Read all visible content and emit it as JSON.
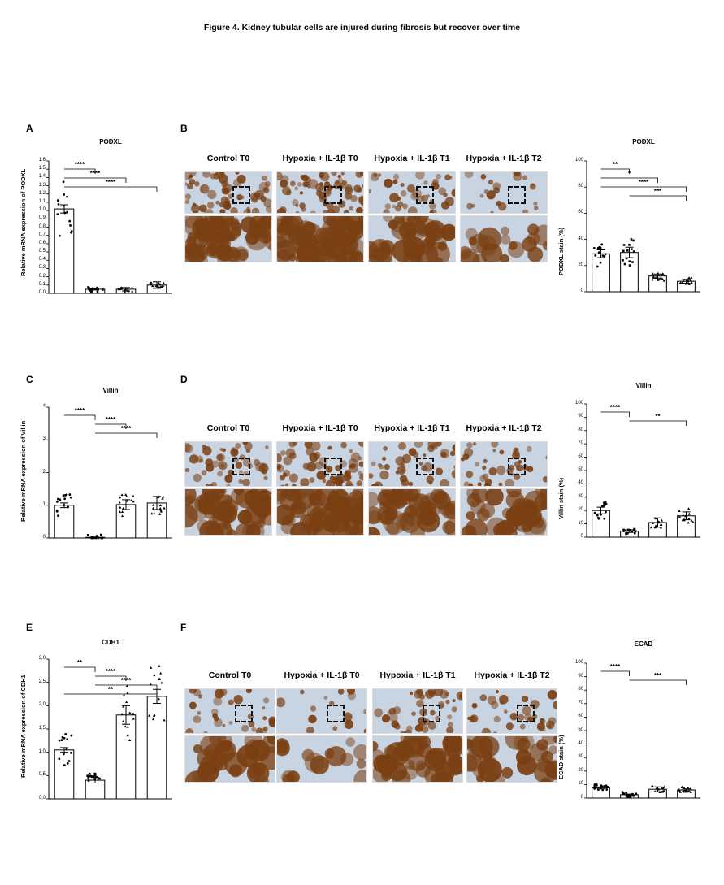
{
  "figure_title": "Figure 4. Kidney tubular cells  are injured during fibrosis but recover over time",
  "panels": {
    "A": {
      "letter": "A",
      "title": "PODXL",
      "ylabel": "Relative mRNA expression of PODXL"
    },
    "B": {
      "letter": "B",
      "title": "PODXL",
      "ylabel": "PODXL stain (%)"
    },
    "C": {
      "letter": "C",
      "title": "Villin",
      "ylabel": "Relative mRNA expression of Villin"
    },
    "D": {
      "letter": "D",
      "title": "Villin",
      "ylabel": "Villin stain (%)"
    },
    "E": {
      "letter": "E",
      "title": "CDH1",
      "ylabel": "Relative mRNA expression of CDH1"
    },
    "F": {
      "letter": "F",
      "title": "ECAD",
      "ylabel": "ECAD stain (%)"
    }
  },
  "micro_labels": [
    "Control T0",
    "Hypoxia + IL-1β T0",
    "Hypoxia + IL-1β T1",
    "Hypoxia + IL-1β T2"
  ],
  "colors": {
    "stain_brown": "#7a3f12",
    "tissue_blue": "#c9d4e3",
    "bar_edge": "#000000"
  },
  "chart_data": [
    {
      "id": "A",
      "type": "bar",
      "title": "PODXL",
      "xlabel": "",
      "ylabel": "Relative mRNA expression of PODXL",
      "categories": [
        "Control T0",
        "Hypoxia+IL-1β T0",
        "Hypoxia+IL-1β T1",
        "Hypoxia+IL-1β T2"
      ],
      "values": [
        1.02,
        0.05,
        0.05,
        0.1
      ],
      "errors": [
        0.05,
        0.01,
        0.02,
        0.04
      ],
      "ylim": [
        0,
        1.6
      ],
      "yticks": [
        "0.0",
        "0.1",
        "0.2",
        "0.3",
        "0.4",
        "0.5",
        "0.6",
        "0.7",
        "0.8",
        "0.9",
        "1.0",
        "1.1",
        "1.2",
        "1.3",
        "1.4",
        "1.5",
        "1.6"
      ],
      "significance": [
        {
          "from": 0,
          "to": 1,
          "label": "****"
        },
        {
          "from": 0,
          "to": 2,
          "label": "****"
        },
        {
          "from": 0,
          "to": 3,
          "label": "****"
        }
      ]
    },
    {
      "id": "B",
      "type": "bar",
      "title": "PODXL",
      "xlabel": "",
      "ylabel": "PODXL stain (%)",
      "categories": [
        "Control T0",
        "Hypoxia+IL-1β T0",
        "Hypoxia+IL-1β T1",
        "Hypoxia+IL-1β T2"
      ],
      "values": [
        29,
        30,
        12,
        8
      ],
      "errors": [
        3,
        4,
        1.5,
        1.5
      ],
      "ylim": [
        0,
        100
      ],
      "yticks": [
        "0",
        "20",
        "40",
        "60",
        "80",
        "100"
      ],
      "significance": [
        {
          "from": 0,
          "to": 1,
          "label": "**"
        },
        {
          "from": 0,
          "to": 2,
          "label": "*"
        },
        {
          "from": 0,
          "to": 3,
          "label": "****"
        },
        {
          "from": 1,
          "to": 3,
          "label": "***"
        }
      ]
    },
    {
      "id": "C",
      "type": "bar",
      "title": "Villin",
      "xlabel": "",
      "ylabel": "Relative mRNA expression of Villin",
      "categories": [
        "Control T0",
        "Hypoxia+IL-1β T0",
        "Hypoxia+IL-1β T1",
        "Hypoxia+IL-1β T2"
      ],
      "values": [
        1.0,
        0.02,
        1.02,
        1.07
      ],
      "errors": [
        0.07,
        0.01,
        0.15,
        0.2
      ],
      "ylim": [
        0,
        4
      ],
      "yticks": [
        "0",
        "1",
        "2",
        "3",
        "4"
      ],
      "significance": [
        {
          "from": 0,
          "to": 1,
          "label": "****"
        },
        {
          "from": 1,
          "to": 2,
          "label": "****"
        },
        {
          "from": 1,
          "to": 3,
          "label": "****"
        }
      ]
    },
    {
      "id": "D",
      "type": "bar",
      "title": "Villin",
      "xlabel": "",
      "ylabel": "Villin stain (%)",
      "categories": [
        "Control T0",
        "Hypoxia+IL-1β T0",
        "Hypoxia+IL-1β T1",
        "Hypoxia+IL-1β T2"
      ],
      "values": [
        20,
        4.5,
        11,
        16
      ],
      "errors": [
        2.5,
        1,
        3.5,
        3
      ],
      "ylim": [
        0,
        100
      ],
      "yticks": [
        "0",
        "10",
        "20",
        "30",
        "40",
        "50",
        "60",
        "70",
        "80",
        "90",
        "100"
      ],
      "significance": [
        {
          "from": 0,
          "to": 1,
          "label": "****"
        },
        {
          "from": 1,
          "to": 3,
          "label": "**"
        }
      ]
    },
    {
      "id": "E",
      "type": "bar",
      "title": "CDH1",
      "xlabel": "",
      "ylabel": "Relative mRNA expression of CDH1",
      "categories": [
        "Control T0",
        "Hypoxia+IL-1β T0",
        "Hypoxia+IL-1β T1",
        "Hypoxia+IL-1β T2"
      ],
      "values": [
        1.05,
        0.4,
        1.8,
        2.2
      ],
      "errors": [
        0.05,
        0.06,
        0.2,
        0.15
      ],
      "ylim": [
        0,
        3.0
      ],
      "yticks": [
        "0,0",
        "0,5",
        "1,0",
        "1,5",
        "2,0",
        "2,5",
        "3,0"
      ],
      "significance": [
        {
          "from": 0,
          "to": 1,
          "label": "**"
        },
        {
          "from": 1,
          "to": 2,
          "label": "****"
        },
        {
          "from": 1,
          "to": 3,
          "label": "****"
        },
        {
          "from": 0,
          "to": 3,
          "label": "**"
        }
      ]
    },
    {
      "id": "F",
      "type": "bar",
      "title": "ECAD",
      "xlabel": "",
      "ylabel": "ECAD stain (%)",
      "categories": [
        "Control T0",
        "Hypoxia+IL-1β T0",
        "Hypoxia+IL-1β T1",
        "Hypoxia+IL-1β T2"
      ],
      "values": [
        7.5,
        2.5,
        6.5,
        6
      ],
      "errors": [
        0.7,
        0.4,
        1.8,
        0.8
      ],
      "ylim": [
        0,
        100
      ],
      "yticks": [
        "0",
        "10",
        "20",
        "30",
        "40",
        "50",
        "60",
        "70",
        "80",
        "90",
        "100"
      ],
      "significance": [
        {
          "from": 0,
          "to": 1,
          "label": "****"
        },
        {
          "from": 1,
          "to": 3,
          "label": "***"
        }
      ]
    }
  ]
}
